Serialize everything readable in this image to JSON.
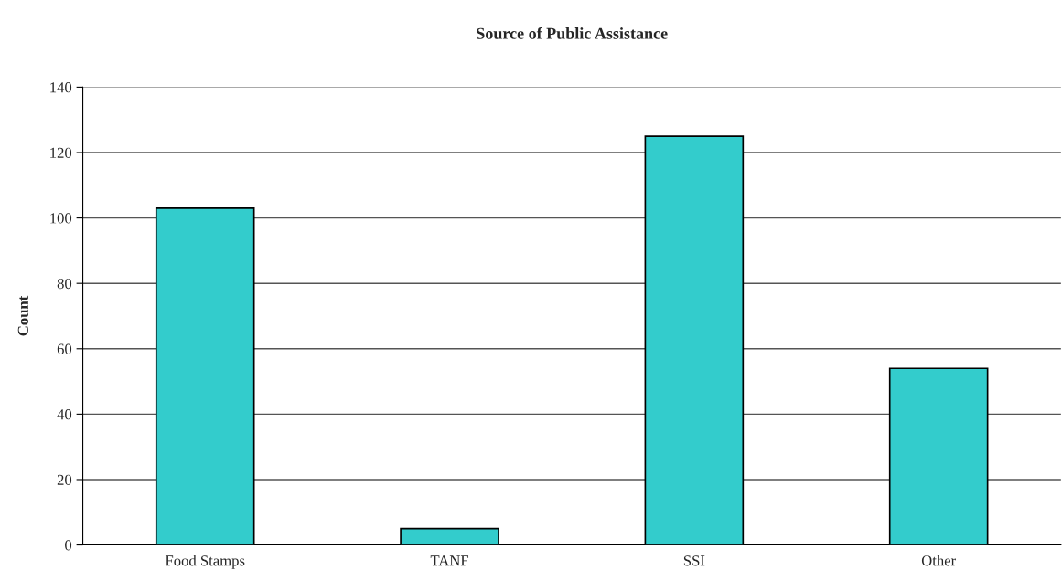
{
  "chart_data": {
    "type": "bar",
    "title": "Source of Public Assistance",
    "ylabel": "Count",
    "categories": [
      "Food Stamps",
      "TANF",
      "SSI",
      "Other"
    ],
    "values": [
      103,
      5,
      125,
      54
    ],
    "color": "#33cccc",
    "ylim": [
      0,
      140
    ],
    "yticks": [
      0,
      20,
      40,
      60,
      80,
      100,
      120,
      140
    ],
    "grid": "y"
  }
}
